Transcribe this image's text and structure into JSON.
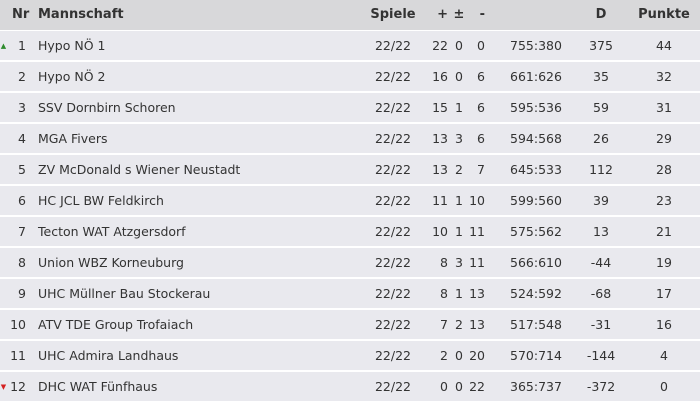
{
  "header": {
    "nr": "Nr",
    "team": "Mannschaft",
    "games": "Spiele",
    "wins": "+",
    "draws": "±",
    "losses": "-",
    "goals": "",
    "diff": "D",
    "points": "Punkte"
  },
  "colors": {
    "up": "#2e8b2e",
    "down": "#d42020",
    "row_bg": "#e9e9ee",
    "header_bg": "#d8d8da"
  },
  "rows": [
    {
      "nr": "1",
      "team": "Hypo NÖ 1",
      "games": "22/22",
      "w": "22",
      "d": "0",
      "l": "0",
      "goals": "755:380",
      "diff": "375",
      "pts": "44",
      "trend": "up"
    },
    {
      "nr": "2",
      "team": "Hypo NÖ 2",
      "games": "22/22",
      "w": "16",
      "d": "0",
      "l": "6",
      "goals": "661:626",
      "diff": "35",
      "pts": "32",
      "trend": ""
    },
    {
      "nr": "3",
      "team": "SSV Dornbirn Schoren",
      "games": "22/22",
      "w": "15",
      "d": "1",
      "l": "6",
      "goals": "595:536",
      "diff": "59",
      "pts": "31",
      "trend": ""
    },
    {
      "nr": "4",
      "team": "MGA Fivers",
      "games": "22/22",
      "w": "13",
      "d": "3",
      "l": "6",
      "goals": "594:568",
      "diff": "26",
      "pts": "29",
      "trend": ""
    },
    {
      "nr": "5",
      "team": "ZV McDonald s Wiener Neustadt",
      "games": "22/22",
      "w": "13",
      "d": "2",
      "l": "7",
      "goals": "645:533",
      "diff": "112",
      "pts": "28",
      "trend": ""
    },
    {
      "nr": "6",
      "team": "HC JCL BW Feldkirch",
      "games": "22/22",
      "w": "11",
      "d": "1",
      "l": "10",
      "goals": "599:560",
      "diff": "39",
      "pts": "23",
      "trend": ""
    },
    {
      "nr": "7",
      "team": "Tecton WAT Atzgersdorf",
      "games": "22/22",
      "w": "10",
      "d": "1",
      "l": "11",
      "goals": "575:562",
      "diff": "13",
      "pts": "21",
      "trend": ""
    },
    {
      "nr": "8",
      "team": "Union WBZ Korneuburg",
      "games": "22/22",
      "w": "8",
      "d": "3",
      "l": "11",
      "goals": "566:610",
      "diff": "-44",
      "pts": "19",
      "trend": ""
    },
    {
      "nr": "9",
      "team": "UHC Müllner Bau Stockerau",
      "games": "22/22",
      "w": "8",
      "d": "1",
      "l": "13",
      "goals": "524:592",
      "diff": "-68",
      "pts": "17",
      "trend": ""
    },
    {
      "nr": "10",
      "team": "ATV TDE Group Trofaiach",
      "games": "22/22",
      "w": "7",
      "d": "2",
      "l": "13",
      "goals": "517:548",
      "diff": "-31",
      "pts": "16",
      "trend": ""
    },
    {
      "nr": "11",
      "team": "UHC Admira Landhaus",
      "games": "22/22",
      "w": "2",
      "d": "0",
      "l": "20",
      "goals": "570:714",
      "diff": "-144",
      "pts": "4",
      "trend": ""
    },
    {
      "nr": "12",
      "team": "DHC WAT Fünfhaus",
      "games": "22/22",
      "w": "0",
      "d": "0",
      "l": "22",
      "goals": "365:737",
      "diff": "-372",
      "pts": "0",
      "trend": "down"
    }
  ]
}
